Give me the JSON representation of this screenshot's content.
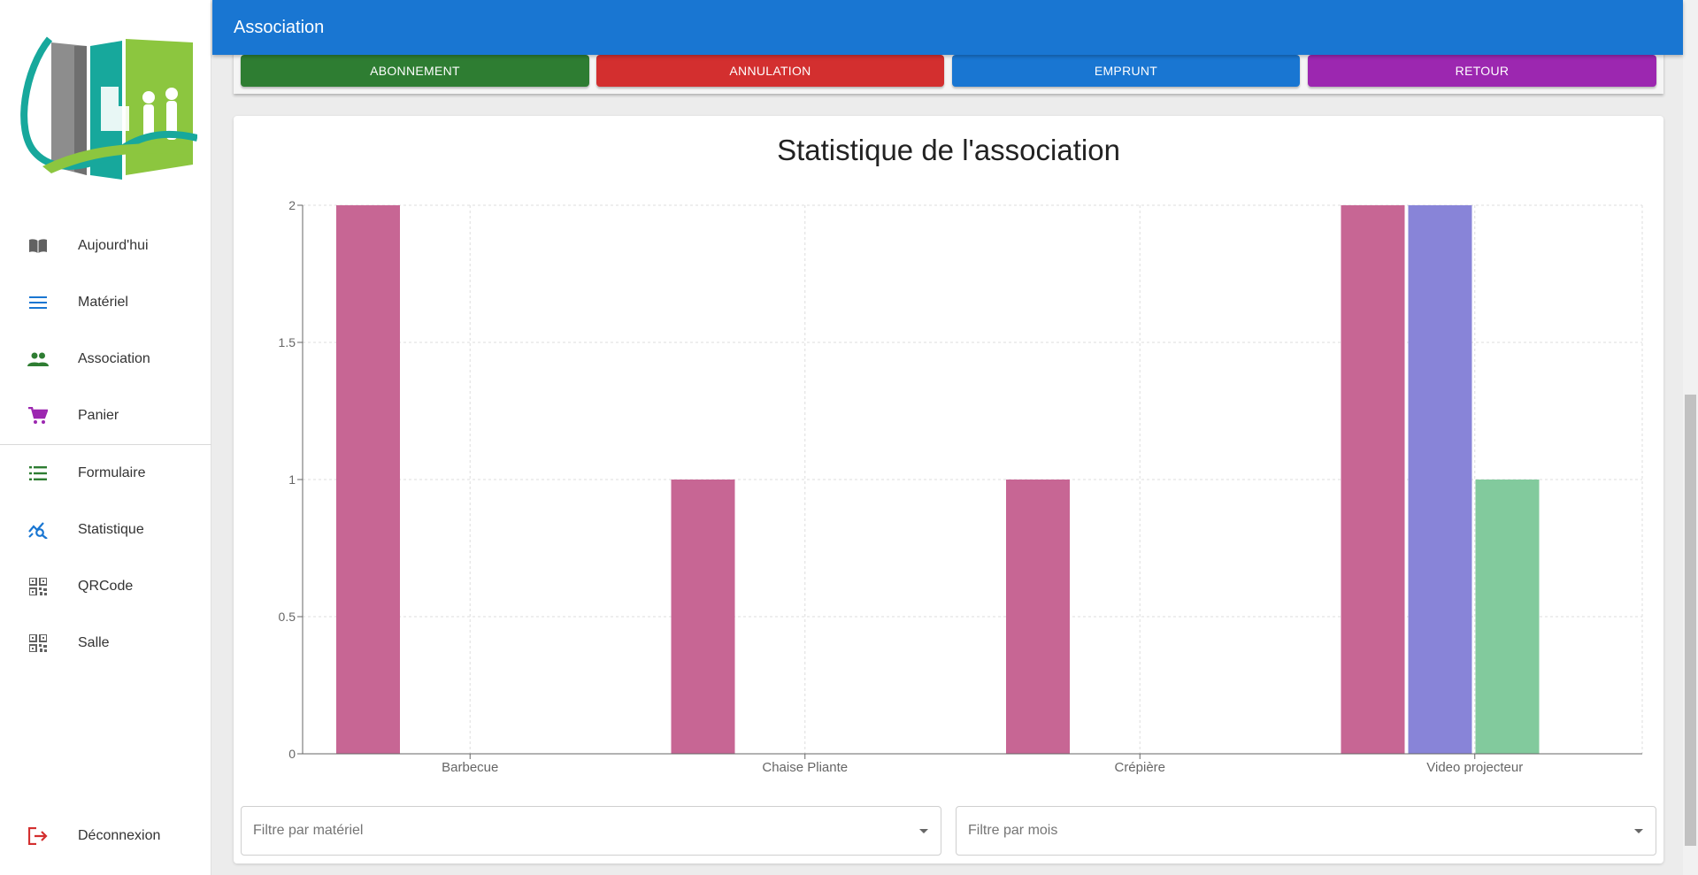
{
  "topbar": {
    "title": "Association"
  },
  "sidebar": {
    "items": [
      {
        "label": "Aujourd'hui",
        "icon": "book-open-icon",
        "color": "#616161"
      },
      {
        "label": "Matériel",
        "icon": "menu-lines-icon",
        "color": "#1976d2"
      },
      {
        "label": "Association",
        "icon": "people-icon",
        "color": "#2e7d32"
      },
      {
        "label": "Panier",
        "icon": "cart-icon",
        "color": "#9c27b0"
      },
      {
        "label": "Formulaire",
        "icon": "list-icon",
        "color": "#2e7d32"
      },
      {
        "label": "Statistique",
        "icon": "chart-search-icon",
        "color": "#1976d2"
      },
      {
        "label": "QRCode",
        "icon": "qrcode-icon",
        "color": "#616161"
      },
      {
        "label": "Salle",
        "icon": "qrcode-icon",
        "color": "#616161"
      }
    ],
    "logout": {
      "label": "Déconnexion",
      "icon": "logout-icon",
      "color": "#d32f2f"
    }
  },
  "actions": {
    "abonnement": {
      "label": "ABONNEMENT",
      "color": "#2e7d32"
    },
    "annulation": {
      "label": "ANNULATION",
      "color": "#d32f2f"
    },
    "emprunt": {
      "label": "EMPRUNT",
      "color": "#1976d2"
    },
    "retour": {
      "label": "RETOUR",
      "color": "#9c27b0"
    }
  },
  "filters": {
    "materiel": {
      "placeholder": "Filtre par matériel"
    },
    "mois": {
      "placeholder": "Filtre par mois"
    }
  },
  "chart_data": {
    "type": "bar",
    "title": "Statistique de l'association",
    "categories": [
      "Barbecue",
      "Chaise Pliante",
      "Crépière",
      "Video projecteur"
    ],
    "series": [
      {
        "values": [
          2,
          1,
          1,
          2
        ],
        "color": "#c76694"
      },
      {
        "values": [
          0,
          0,
          0,
          2
        ],
        "color": "#8884d8"
      },
      {
        "values": [
          0,
          0,
          0,
          1
        ],
        "color": "#82ca9d"
      }
    ],
    "yticks": [
      "0",
      "0.5",
      "1",
      "1.5",
      "2"
    ],
    "ylim": [
      0,
      2
    ],
    "grid": true,
    "xlabel": "",
    "ylabel": ""
  }
}
